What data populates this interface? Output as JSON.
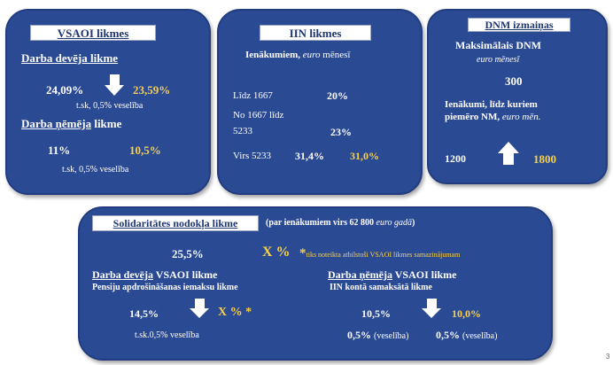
{
  "vsaoi": {
    "title": "VSAOI likmes",
    "employer_label": "Darba devēja likme",
    "employer_old": "24,09%",
    "employer_new": "23,59%",
    "employer_note": "t.sk, 0,5% veselība",
    "employee_label_a": "Darba ņēmēja",
    "employee_label_b": " likme",
    "employee_old": "11%",
    "employee_new": "10,5%",
    "employee_note": "t.sk, 0,5% veselība"
  },
  "iin": {
    "title": "IIN likmes",
    "subtitle_bold": "Ienākumiem, ",
    "subtitle_italic": "euro",
    "subtitle_rest": " mēnesī",
    "row1_label": "Līdz 1667",
    "row1_value": "20%",
    "row2_label_a": "No 1667 līdz",
    "row2_label_b": "5233",
    "row2_value": "23%",
    "row3_label": "Virs 5233",
    "row3_old": "31,4%",
    "row3_new": "31,0%"
  },
  "dnm": {
    "title": "DNM izmaiņas",
    "max_label": "Maksimālais DNM",
    "max_unit": "euro mēnesī",
    "max_value": "300",
    "income_label_a": "Ienākumi, līdz kuriem",
    "income_label_b": "piemēro NM, ",
    "income_label_unit": "euro mēn.",
    "income_old": "1200",
    "income_new": "1800"
  },
  "solidarity": {
    "title": "Solidaritātes nodokļa likme",
    "subtitle_a": "(par ienākumiem virs 62 800 ",
    "subtitle_italic": "euro gadā",
    "subtitle_b": ")",
    "rate_old": "25,5%",
    "rate_new": "X %",
    "rate_note_star": "*",
    "rate_note": "tiks noteikta atbilstoši VSAOI likmes samazinājumam",
    "employer_label_a": "Darba devēja",
    "employer_label_b": " VSAOI likme",
    "employer_sub": "Pensiju apdrošināšanas iemaksu likme",
    "employer_old": "14,5%",
    "employer_new": "X % *",
    "employer_note": "t.sk.0,5% veselība",
    "employee_label_a": "Darba ņēmēja",
    "employee_label_b": " VSAOI likme",
    "employee_sub": "IIN kontā samaksātā likme",
    "employee_old": "10,5%",
    "employee_new": "10,0%",
    "health_a_value": "0,5%",
    "health_a_label": "(veselība)",
    "health_b_value": "0,5%",
    "health_b_label": "(veselība)"
  },
  "page_number": "3",
  "colors": {
    "card": "#2b4a94",
    "accent": "#f6d04a",
    "banner_text": "#1f3672"
  }
}
